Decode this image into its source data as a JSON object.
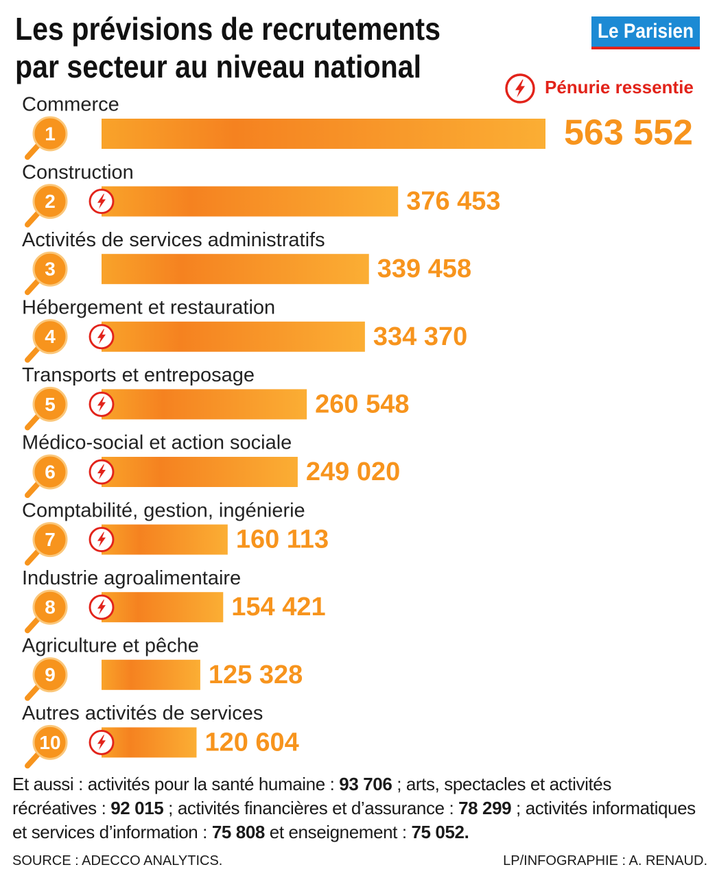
{
  "chart_data": {
    "type": "bar",
    "orientation": "horizontal",
    "title": [
      "Les prévisions de recrutements",
      "par secteur au niveau national"
    ],
    "logo": "Le Parisien",
    "legend": "Pénurie ressentie",
    "color": "#f7941d",
    "shortage_color": "#e2231a",
    "categories": [
      "Commerce",
      "Construction",
      "Activités de services administratifs",
      "Hébergement et restauration",
      "Transports et entreposage",
      "Médico-social et action sociale",
      "Comptabilité, gestion, ingénierie",
      "Industrie agroalimentaire",
      "Agriculture et pêche",
      "Autres activités de services"
    ],
    "ranks": [
      "1",
      "2",
      "3",
      "4",
      "5",
      "6",
      "7",
      "8",
      "9",
      "10"
    ],
    "values": [
      563552,
      376453,
      339458,
      334370,
      260548,
      249020,
      160113,
      154421,
      125328,
      120604
    ],
    "value_labels": [
      "563 552",
      "376 453",
      "339 458",
      "334 370",
      "260 548",
      "249 020",
      "160 113",
      "154 421",
      "125 328",
      "120 604"
    ],
    "shortage": [
      false,
      true,
      false,
      true,
      true,
      true,
      true,
      true,
      false,
      true
    ],
    "note": [
      {
        "text": "Et aussi : activités pour la santé humaine : ",
        "bold": false
      },
      {
        "text": "93 706",
        "bold": true
      },
      {
        "text": " ; arts, spectacles et activités récréatives : ",
        "bold": false
      },
      {
        "text": "92 015",
        "bold": true
      },
      {
        "text": " ; activités financières et d’assurance : ",
        "bold": false
      },
      {
        "text": "78 299",
        "bold": true
      },
      {
        "text": " ; activités informatiques et services d’information : ",
        "bold": false
      },
      {
        "text": "75 808",
        "bold": true
      },
      {
        "text": " et enseignement : ",
        "bold": false
      },
      {
        "text": "75 052.",
        "bold": true
      }
    ],
    "source": "SOURCE : ADECCO ANALYTICS.",
    "credit": "LP/INFOGRAPHIE : A. RENAUD."
  }
}
